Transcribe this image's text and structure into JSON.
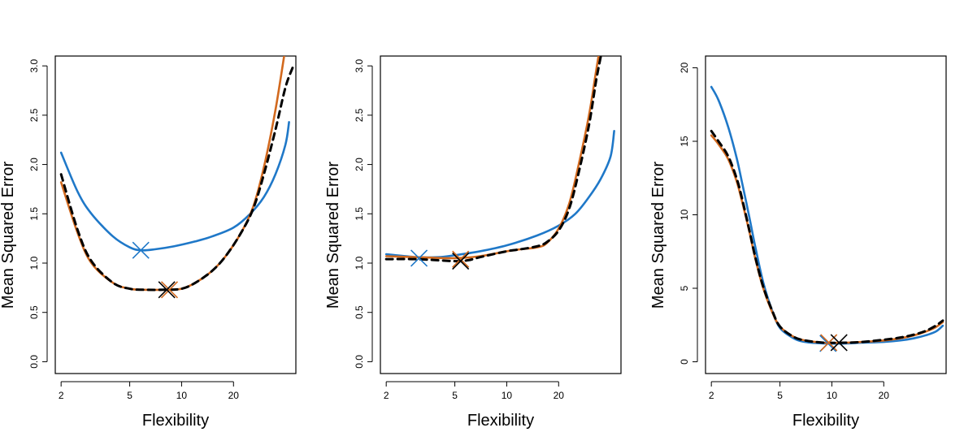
{
  "colors": {
    "blue": "#1f78c8",
    "orange": "#d2691e",
    "black": "#000000"
  },
  "chart_data": [
    {
      "type": "line",
      "xlabel": "Flexibility",
      "ylabel": "Mean Squared Error",
      "xscale": "log",
      "xlim": [
        1.85,
        46
      ],
      "ylim": [
        -0.12,
        3.1
      ],
      "xticks": [
        2,
        5,
        10,
        20
      ],
      "yticks": [
        0.0,
        0.5,
        1.0,
        1.5,
        2.0,
        2.5,
        3.0
      ],
      "ytick_labels": [
        "0.0",
        "0.5",
        "1.0",
        "1.5",
        "2.0",
        "2.5",
        "3.0"
      ],
      "grid": false,
      "series": [
        {
          "color": "blue",
          "dash": "solid",
          "x": [
            2,
            2.5,
            3,
            4,
            5,
            5.8,
            7,
            9,
            12,
            15,
            20,
            25,
            30,
            35,
            40,
            42
          ],
          "y": [
            2.12,
            1.72,
            1.5,
            1.27,
            1.16,
            1.13,
            1.14,
            1.17,
            1.22,
            1.27,
            1.36,
            1.5,
            1.67,
            1.9,
            2.2,
            2.43
          ]
        },
        {
          "color": "orange",
          "dash": "solid",
          "x": [
            2,
            2.5,
            3,
            4,
            5,
            6,
            8,
            10,
            12,
            15,
            18,
            22,
            26,
            30,
            35,
            40,
            43
          ],
          "y": [
            1.82,
            1.3,
            1.0,
            0.8,
            0.74,
            0.73,
            0.73,
            0.74,
            0.8,
            0.92,
            1.07,
            1.3,
            1.57,
            1.97,
            2.55,
            3.18,
            3.5
          ]
        },
        {
          "color": "black",
          "dash": "dashed",
          "x": [
            2,
            2.5,
            3,
            4,
            5,
            6,
            8,
            10,
            12,
            15,
            18,
            22,
            26,
            30,
            35,
            40,
            44
          ],
          "y": [
            1.9,
            1.33,
            1.02,
            0.8,
            0.74,
            0.73,
            0.73,
            0.74,
            0.8,
            0.92,
            1.07,
            1.3,
            1.55,
            1.9,
            2.35,
            2.78,
            2.98
          ]
        }
      ],
      "markers": [
        {
          "color": "blue",
          "x": 5.8,
          "y": 1.13
        },
        {
          "color": "orange",
          "x": 8.5,
          "y": 0.73
        },
        {
          "color": "black",
          "x": 8.2,
          "y": 0.73
        }
      ]
    },
    {
      "type": "line",
      "xlabel": "Flexibility",
      "ylabel": "Mean Squared Error",
      "xscale": "log",
      "xlim": [
        1.85,
        46
      ],
      "ylim": [
        -0.12,
        3.1
      ],
      "xticks": [
        2,
        5,
        10,
        20
      ],
      "yticks": [
        0.0,
        0.5,
        1.0,
        1.5,
        2.0,
        2.5,
        3.0
      ],
      "ytick_labels": [
        "0.0",
        "0.5",
        "1.0",
        "1.5",
        "2.0",
        "2.5",
        "3.0"
      ],
      "grid": false,
      "series": [
        {
          "color": "blue",
          "dash": "solid",
          "x": [
            2,
            3,
            4,
            5,
            7,
            10,
            15,
            20,
            25,
            30,
            35,
            40,
            42
          ],
          "y": [
            1.09,
            1.06,
            1.06,
            1.08,
            1.12,
            1.18,
            1.28,
            1.38,
            1.5,
            1.67,
            1.85,
            2.08,
            2.34
          ]
        },
        {
          "color": "orange",
          "dash": "solid",
          "x": [
            2,
            3,
            5,
            7,
            10,
            12,
            15,
            17,
            20,
            23,
            26,
            30,
            33,
            36,
            38
          ],
          "y": [
            1.07,
            1.06,
            1.05,
            1.07,
            1.12,
            1.14,
            1.16,
            1.2,
            1.35,
            1.6,
            1.98,
            2.5,
            2.95,
            3.35,
            3.6
          ]
        },
        {
          "color": "black",
          "dash": "dashed",
          "x": [
            2,
            3,
            5,
            6,
            7,
            10,
            12,
            15,
            17,
            20,
            23,
            26,
            30,
            33,
            36,
            38
          ],
          "y": [
            1.04,
            1.04,
            1.02,
            1.03,
            1.06,
            1.12,
            1.14,
            1.17,
            1.21,
            1.33,
            1.55,
            1.9,
            2.4,
            2.85,
            3.2,
            3.5
          ]
        }
      ],
      "markers": [
        {
          "color": "blue",
          "x": 3.1,
          "y": 1.05
        },
        {
          "color": "orange",
          "x": 5.4,
          "y": 1.04
        },
        {
          "color": "black",
          "x": 5.4,
          "y": 1.02
        }
      ]
    },
    {
      "type": "line",
      "xlabel": "Flexibility",
      "ylabel": "Mean Squared Error",
      "xscale": "log",
      "xlim": [
        1.85,
        46
      ],
      "ylim": [
        -0.8,
        20.8
      ],
      "xticks": [
        2,
        5,
        10,
        20
      ],
      "yticks": [
        0,
        5,
        10,
        15,
        20
      ],
      "ytick_labels": [
        "0",
        "5",
        "10",
        "15",
        "20"
      ],
      "grid": false,
      "series": [
        {
          "color": "blue",
          "dash": "solid",
          "x": [
            2,
            2.2,
            2.5,
            2.8,
            3,
            3.3,
            3.6,
            4,
            4.5,
            5,
            6,
            7,
            9,
            12,
            15,
            20,
            25,
            30,
            35,
            40,
            44
          ],
          "y": [
            18.7,
            17.8,
            16.0,
            13.9,
            12.3,
            10.0,
            7.8,
            5.4,
            3.5,
            2.3,
            1.6,
            1.35,
            1.25,
            1.25,
            1.3,
            1.35,
            1.45,
            1.6,
            1.8,
            2.05,
            2.45
          ]
        },
        {
          "color": "orange",
          "dash": "solid",
          "x": [
            2,
            2.2,
            2.5,
            2.8,
            3,
            3.3,
            3.6,
            4,
            4.5,
            5,
            6,
            7,
            9,
            12,
            15,
            20,
            25,
            30,
            35,
            40,
            44
          ],
          "y": [
            15.4,
            14.8,
            13.8,
            12.3,
            11.0,
            9.0,
            7.0,
            5.0,
            3.4,
            2.4,
            1.7,
            1.45,
            1.3,
            1.3,
            1.35,
            1.45,
            1.6,
            1.8,
            2.05,
            2.35,
            2.7
          ]
        },
        {
          "color": "black",
          "dash": "dashed",
          "x": [
            2,
            2.2,
            2.5,
            2.8,
            3,
            3.3,
            3.6,
            4,
            4.5,
            5,
            6,
            7,
            9,
            12,
            15,
            20,
            25,
            30,
            35,
            40,
            44
          ],
          "y": [
            15.7,
            15.0,
            14.0,
            12.5,
            11.2,
            9.1,
            7.1,
            5.1,
            3.5,
            2.4,
            1.7,
            1.45,
            1.3,
            1.3,
            1.35,
            1.5,
            1.65,
            1.85,
            2.1,
            2.45,
            2.8
          ]
        }
      ],
      "markers": [
        {
          "color": "blue",
          "x": 9.5,
          "y": 1.25
        },
        {
          "color": "orange",
          "x": 9.6,
          "y": 1.3
        },
        {
          "color": "black",
          "x": 11.0,
          "y": 1.3
        }
      ]
    }
  ]
}
